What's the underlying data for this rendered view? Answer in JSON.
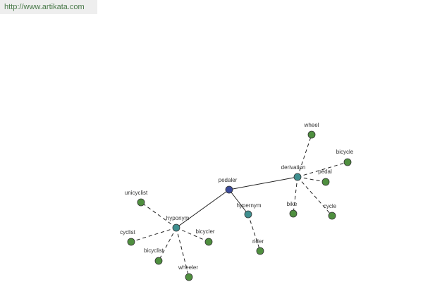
{
  "header": {
    "url": "http://www.artikata.com"
  },
  "nodes": [
    {
      "label": "pedaler"
    },
    {
      "label": "derivation"
    },
    {
      "label": "hypernym"
    },
    {
      "label": "hyponym"
    },
    {
      "label": "wheel"
    },
    {
      "label": "bicycle"
    },
    {
      "label": "pedal"
    },
    {
      "label": "bike"
    },
    {
      "label": "cycle"
    },
    {
      "label": "rider"
    },
    {
      "label": "unicyclist"
    },
    {
      "label": "cyclist"
    },
    {
      "label": "bicyclist"
    },
    {
      "label": "wheeler"
    },
    {
      "label": "bicycler"
    }
  ]
}
